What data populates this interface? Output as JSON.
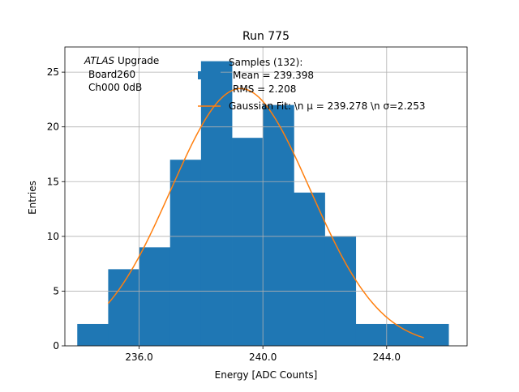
{
  "chart_data": {
    "type": "histogram",
    "title": "Run 775",
    "xlabel": "Energy [ADC Counts]",
    "ylabel": "Entries",
    "xlim": [
      233.6,
      246.6
    ],
    "ylim": [
      0,
      27.3
    ],
    "grid": true,
    "xticks": [
      236,
      240,
      244
    ],
    "xtick_labels": [
      "236.0",
      "240.0",
      "244.0"
    ],
    "yticks": [
      0,
      5,
      10,
      15,
      20,
      25
    ],
    "ytick_labels": [
      "0",
      "5",
      "10",
      "15",
      "20",
      "25"
    ],
    "bins": [
      {
        "x0": 234.0,
        "x1": 235.0,
        "count": 2
      },
      {
        "x0": 235.0,
        "x1": 236.0,
        "count": 7
      },
      {
        "x0": 236.0,
        "x1": 237.0,
        "count": 9
      },
      {
        "x0": 237.0,
        "x1": 238.0,
        "count": 17
      },
      {
        "x0": 238.0,
        "x1": 239.0,
        "count": 26
      },
      {
        "x0": 239.0,
        "x1": 240.0,
        "count": 19
      },
      {
        "x0": 240.0,
        "x1": 241.0,
        "count": 22
      },
      {
        "x0": 241.0,
        "x1": 242.0,
        "count": 14
      },
      {
        "x0": 242.0,
        "x1": 243.0,
        "count": 10
      },
      {
        "x0": 243.0,
        "x1": 244.0,
        "count": 2
      },
      {
        "x0": 244.0,
        "x1": 245.0,
        "count": 2
      },
      {
        "x0": 245.0,
        "x1": 246.0,
        "count": 2
      }
    ],
    "fit": {
      "type": "gaussian",
      "mu": 239.278,
      "sigma": 2.253,
      "amplitude": 23.5,
      "x_range": [
        235.0,
        245.2
      ]
    },
    "legend": {
      "placement": "top-right",
      "samples_label": "Samples (132):",
      "mean_label": "Mean = 239.398",
      "rms_label": "RMS = 2.208",
      "fit_label": "Gaussian Fit: \\n μ = 239.278 \\n σ=2.253"
    },
    "annotation": {
      "atlas": "ATLAS",
      "upgrade": " Upgrade",
      "board": "Board260",
      "channel": "Ch000 0dB"
    },
    "colors": {
      "bar": "#1f77b4",
      "fit": "#ff7f0e",
      "grid": "#b0b0b0",
      "axis": "#000000"
    }
  }
}
